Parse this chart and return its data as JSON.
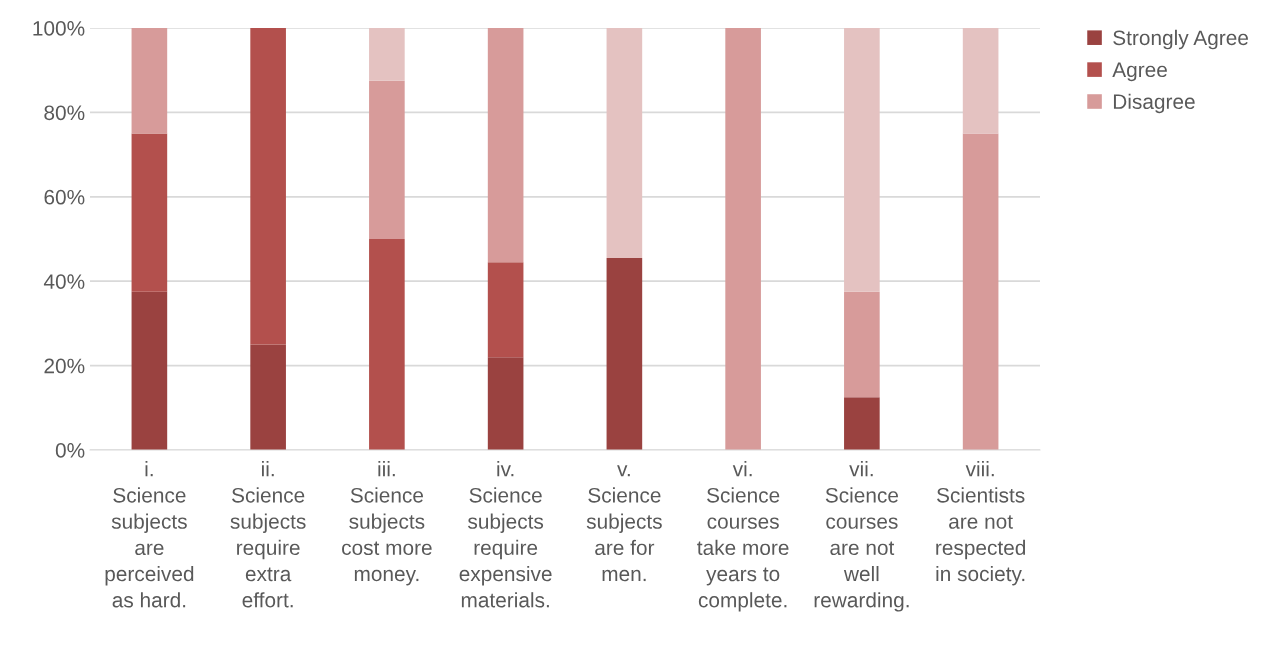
{
  "chart_data": {
    "type": "bar",
    "stacked": true,
    "categories": [
      "i.\nScience\nsubjects\nare\nperceived\nas hard.",
      "ii.\nScience\nsubjects\nrequire\nextra\neffort.",
      "iii.\nScience\nsubjects\ncost more\nmoney.",
      "iv.\nScience\nsubjects\nrequire\nexpensive\nmaterials.",
      "v.\nScience\nsubjects\nare for\nmen.",
      "vi.\nScience\ncourses\ntake more\nyears to\ncomplete.",
      "vii.\nScience\ncourses\nare not\nwell\nrewarding.",
      "viii.\nScientists\nare not\nrespected\nin society."
    ],
    "series": [
      {
        "name": "Strongly Agree",
        "color": "#9a4240",
        "values": [
          37.5,
          25,
          0,
          22,
          45.5,
          0,
          12.5,
          0
        ]
      },
      {
        "name": "Agree",
        "color": "#b3504d",
        "values": [
          37.5,
          75,
          50,
          22.5,
          0,
          0,
          0,
          0
        ]
      },
      {
        "name": "Disagree",
        "color": "#d79b9a",
        "values": [
          25,
          0,
          37.5,
          55.5,
          0,
          100,
          25,
          75
        ]
      },
      {
        "color": "#e4c2c1",
        "values": [
          0,
          0,
          12.5,
          0,
          54.5,
          0,
          62.5,
          25
        ]
      }
    ],
    "ylim": [
      0,
      100
    ],
    "yticks": [
      {
        "value": 0,
        "label": "0%"
      },
      {
        "value": 20,
        "label": "20%"
      },
      {
        "value": 40,
        "label": "40%"
      },
      {
        "value": 60,
        "label": "60%"
      },
      {
        "value": 80,
        "label": "80%"
      },
      {
        "value": 100,
        "label": "100%"
      }
    ],
    "grid": "y",
    "legend": "top right"
  }
}
